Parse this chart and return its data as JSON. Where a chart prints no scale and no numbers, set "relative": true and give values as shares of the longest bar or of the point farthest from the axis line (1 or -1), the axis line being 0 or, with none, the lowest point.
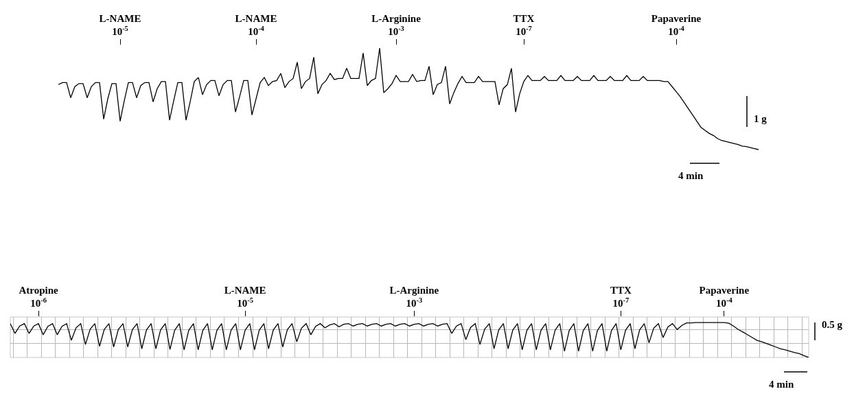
{
  "chart_data": [
    {
      "type": "line",
      "relative": true,
      "grid": false,
      "tick_labels": "x",
      "annotations": [
        "1 g",
        "4 min"
      ],
      "categories": [
        null,
        null,
        null,
        null,
        null,
        null,
        null,
        null,
        null,
        null,
        null,
        null,
        null,
        null,
        null,
        "L-NAME\n10$^{-5}$",
        null,
        null,
        null,
        null,
        null,
        null,
        null,
        null,
        null,
        null,
        null,
        null,
        null,
        null,
        null,
        null,
        null,
        null,
        null,
        null,
        null,
        null,
        null,
        null,
        null,
        null,
        null,
        null,
        null,
        null,
        null,
        null,
        "L-NAME\n10$^{-4}$",
        null,
        null,
        null,
        null,
        null,
        null,
        null,
        null,
        null,
        null,
        null,
        null,
        null,
        null,
        null,
        null,
        null,
        null,
        null,
        null,
        null,
        null,
        null,
        null,
        null,
        null,
        null,
        null,
        null,
        null,
        null,
        null,
        null,
        "L-Arginine\n10$^{-3}$",
        null,
        null,
        null,
        null,
        null,
        null,
        null,
        null,
        null,
        null,
        null,
        null,
        null,
        null,
        null,
        null,
        null,
        null,
        null,
        null,
        null,
        null,
        null,
        null,
        null,
        null,
        null,
        null,
        null,
        null,
        "TTX\n10$^{-7}$",
        null,
        null,
        null,
        null,
        null,
        null,
        null,
        null,
        null,
        null,
        null,
        null,
        null,
        null,
        null,
        null,
        null,
        null,
        null,
        null,
        null,
        null,
        null,
        null,
        null,
        null,
        null,
        null,
        null,
        null,
        null,
        null,
        null,
        null,
        null,
        null,
        "Papaverine\n10$^{-4}$",
        null,
        null,
        null,
        null,
        null,
        null,
        null,
        null,
        null,
        null,
        null,
        null,
        null,
        null,
        null,
        null,
        null,
        null,
        null,
        null
      ],
      "series": [
        {
          "color": "#000000",
          "values": [
            0.64,
            0.66,
            0.66,
            0.51,
            0.62,
            0.65,
            0.65,
            0.51,
            0.62,
            0.66,
            0.66,
            0.3,
            0.5,
            0.65,
            0.65,
            0.28,
            0.48,
            0.66,
            0.66,
            0.51,
            0.63,
            0.66,
            0.66,
            0.47,
            0.6,
            0.67,
            0.67,
            0.29,
            0.48,
            0.66,
            0.66,
            0.29,
            0.47,
            0.67,
            0.71,
            0.54,
            0.64,
            0.68,
            0.68,
            0.53,
            0.64,
            0.68,
            0.68,
            0.37,
            0.52,
            0.68,
            0.68,
            0.34,
            0.5,
            0.66,
            0.71,
            0.63,
            0.67,
            0.68,
            0.75,
            0.61,
            0.67,
            0.7,
            0.86,
            0.6,
            0.67,
            0.7,
            0.91,
            0.55,
            0.64,
            0.68,
            0.75,
            0.69,
            0.7,
            0.7,
            0.8,
            0.7,
            0.7,
            0.7,
            0.95,
            0.63,
            0.68,
            0.7,
            1.0,
            0.56,
            0.6,
            0.65,
            0.73,
            0.67,
            0.67,
            0.67,
            0.74,
            0.67,
            0.68,
            0.68,
            0.82,
            0.54,
            0.64,
            0.66,
            0.82,
            0.45,
            0.56,
            0.65,
            0.72,
            0.66,
            0.66,
            0.66,
            0.72,
            0.67,
            0.67,
            0.67,
            0.67,
            0.44,
            0.6,
            0.64,
            0.8,
            0.37,
            0.55,
            0.67,
            0.73,
            0.68,
            0.68,
            0.68,
            0.72,
            0.68,
            0.68,
            0.68,
            0.73,
            0.68,
            0.68,
            0.68,
            0.72,
            0.68,
            0.68,
            0.68,
            0.73,
            0.68,
            0.68,
            0.68,
            0.72,
            0.68,
            0.68,
            0.68,
            0.73,
            0.68,
            0.68,
            0.68,
            0.72,
            0.68,
            0.68,
            0.68,
            0.68,
            0.67,
            0.67,
            0.62,
            0.57,
            0.52,
            0.46,
            0.4,
            0.34,
            0.28,
            0.22,
            0.19,
            0.16,
            0.14,
            0.11,
            0.09,
            0.08,
            0.07,
            0.06,
            0.05,
            0.035,
            0.03,
            0.02,
            0.01,
            0.0
          ]
        }
      ]
    },
    {
      "type": "line",
      "relative": true,
      "grid": true,
      "tick_labels": "x",
      "annotations": [
        "0.5 g",
        "4 min"
      ],
      "categories": [
        null,
        null,
        null,
        null,
        null,
        null,
        "Atropine\n10$^{-6}$",
        null,
        null,
        null,
        null,
        null,
        null,
        null,
        null,
        null,
        null,
        null,
        null,
        null,
        null,
        null,
        null,
        null,
        null,
        null,
        null,
        null,
        null,
        null,
        null,
        null,
        null,
        null,
        null,
        null,
        null,
        null,
        null,
        null,
        null,
        null,
        null,
        null,
        null,
        null,
        null,
        null,
        null,
        null,
        "L-NAME\n10$^{-5}$",
        null,
        null,
        null,
        null,
        null,
        null,
        null,
        null,
        null,
        null,
        null,
        null,
        null,
        null,
        null,
        null,
        null,
        null,
        null,
        null,
        null,
        null,
        null,
        null,
        null,
        null,
        null,
        null,
        null,
        null,
        null,
        null,
        null,
        null,
        null,
        "L-Arginine\n10$^{-3}$",
        null,
        null,
        null,
        null,
        null,
        null,
        null,
        null,
        null,
        null,
        null,
        null,
        null,
        null,
        null,
        null,
        null,
        null,
        null,
        null,
        null,
        null,
        null,
        null,
        null,
        null,
        null,
        null,
        null,
        null,
        null,
        null,
        null,
        null,
        null,
        null,
        null,
        null,
        null,
        null,
        null,
        null,
        null,
        "TTX\n10$^{-7}$",
        null,
        null,
        null,
        null,
        null,
        null,
        null,
        null,
        null,
        null,
        null,
        null,
        null,
        null,
        null,
        null,
        null,
        null,
        null,
        null,
        null,
        "Papaverine\n10$^{-4}$",
        null,
        null,
        null,
        null,
        null,
        null,
        null,
        null,
        null,
        null,
        null,
        null,
        null,
        null,
        null,
        null,
        null,
        null
      ],
      "series": [
        {
          "color": "#000000",
          "values": [
            0.97,
            0.69,
            0.9,
            0.97,
            0.69,
            0.9,
            0.97,
            0.65,
            0.89,
            0.97,
            0.65,
            0.89,
            0.97,
            0.49,
            0.85,
            0.97,
            0.37,
            0.81,
            0.97,
            0.32,
            0.8,
            0.97,
            0.3,
            0.8,
            0.97,
            0.3,
            0.8,
            0.97,
            0.25,
            0.79,
            0.97,
            0.25,
            0.79,
            0.97,
            0.23,
            0.78,
            0.97,
            0.22,
            0.78,
            0.97,
            0.22,
            0.78,
            0.97,
            0.22,
            0.78,
            0.97,
            0.22,
            0.78,
            0.97,
            0.22,
            0.78,
            0.97,
            0.22,
            0.78,
            0.97,
            0.25,
            0.79,
            0.97,
            0.3,
            0.8,
            0.97,
            0.45,
            0.84,
            0.97,
            0.65,
            0.89,
            0.97,
            0.85,
            0.93,
            0.97,
            0.88,
            0.95,
            0.97,
            0.9,
            0.95,
            0.97,
            0.9,
            0.95,
            0.97,
            0.9,
            0.95,
            0.97,
            0.9,
            0.95,
            0.97,
            0.9,
            0.95,
            0.97,
            0.9,
            0.95,
            0.97,
            0.9,
            0.95,
            0.97,
            0.69,
            0.9,
            0.97,
            0.51,
            0.86,
            0.97,
            0.37,
            0.81,
            0.97,
            0.25,
            0.79,
            0.97,
            0.25,
            0.79,
            0.97,
            0.22,
            0.78,
            0.97,
            0.22,
            0.78,
            0.97,
            0.22,
            0.78,
            0.97,
            0.18,
            0.77,
            0.97,
            0.18,
            0.77,
            0.97,
            0.18,
            0.77,
            0.97,
            0.18,
            0.77,
            0.97,
            0.22,
            0.78,
            0.97,
            0.25,
            0.79,
            0.97,
            0.42,
            0.84,
            0.97,
            0.57,
            0.87,
            0.97,
            0.8,
            0.92,
            0.99,
            0.99,
            1.0,
            1.0,
            1.0,
            1.0,
            1.0,
            1.0,
            1.0,
            0.98,
            0.9,
            0.8,
            0.73,
            0.65,
            0.57,
            0.49,
            0.45,
            0.4,
            0.35,
            0.3,
            0.25,
            0.22,
            0.18,
            0.14,
            0.11,
            0.05,
            0.0
          ]
        }
      ]
    }
  ]
}
